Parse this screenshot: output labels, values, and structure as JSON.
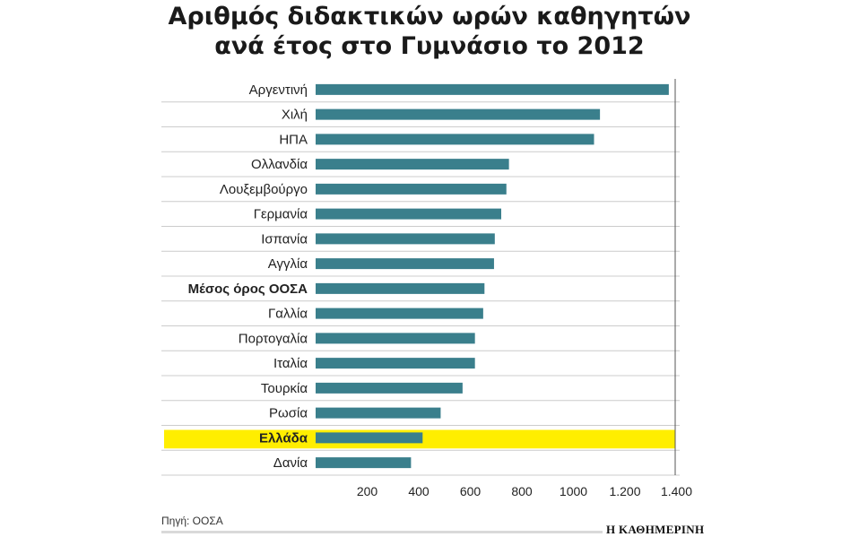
{
  "chart_data": {
    "type": "bar",
    "orientation": "horizontal",
    "title_lines": [
      "Αριθμός διδακτικών ωρών καθηγητών",
      "ανά έτος στο Γυμνάσιο το 2012"
    ],
    "categories": [
      "Αργεντινή",
      "Χιλή",
      "ΗΠΑ",
      "Ολλανδία",
      "Λουξεμβούργο",
      "Γερμανία",
      "Ισπανία",
      "Αγγλία",
      "Μέσος όρος ΟΟΣΑ",
      "Γαλλία",
      "Πορτογαλία",
      "Ιταλία",
      "Τουρκία",
      "Ρωσία",
      "Ελλάδα",
      "Δανία"
    ],
    "values": [
      1370,
      1103,
      1080,
      750,
      740,
      720,
      695,
      692,
      655,
      650,
      618,
      618,
      570,
      485,
      415,
      370
    ],
    "xticks": [
      200,
      400,
      600,
      800,
      1000,
      1200,
      1400
    ],
    "xtick_labels": [
      "200",
      "400",
      "600",
      "800",
      "1000",
      "1.200",
      "1.400"
    ],
    "xlim": [
      0,
      1400
    ],
    "grid": "horizontal row separators",
    "bold_categories": [
      "Μέσος όρος ΟΟΣΑ",
      "Ελλάδα"
    ],
    "highlight_category": "Ελλάδα",
    "colors": {
      "bar": "#3a7f8c",
      "highlight_band": "#ffee00",
      "grid": "#cccccc",
      "axis": "#555555"
    }
  },
  "source": "Πηγή: ΟΟΣΑ",
  "publisher": "Η ΚΑΘΗΜΕΡΙΝΗ"
}
